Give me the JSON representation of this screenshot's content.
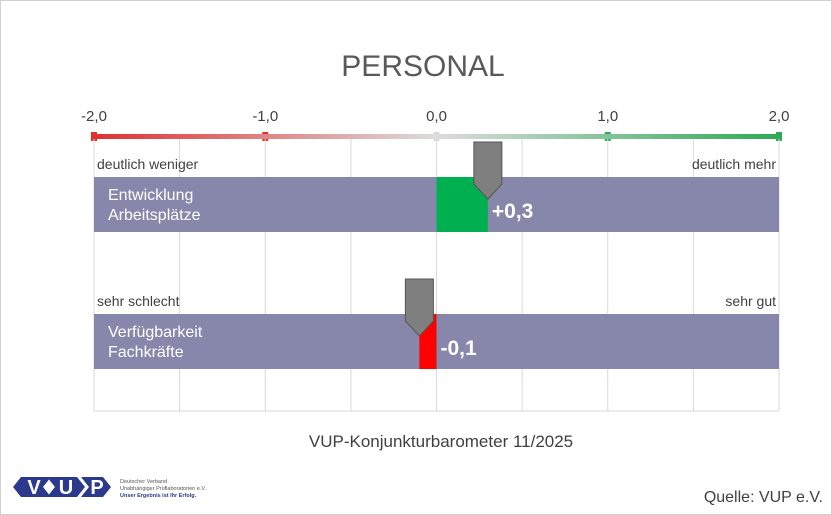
{
  "chart_data": {
    "type": "bar",
    "title": "PERSONAL",
    "xlim": [
      -2,
      2
    ],
    "ticks": [
      -2,
      -1,
      0,
      1,
      2
    ],
    "tick_labels": [
      "-2,0",
      "-1,0",
      "0,0",
      "1,0",
      "2,0"
    ],
    "grid": true,
    "rows": [
      {
        "left_label": "deutlich weniger",
        "right_label": "deutlich mehr",
        "category_lines": [
          "Entwicklung",
          "Arbeitsplätze"
        ],
        "value": 0.3,
        "value_label": "+0,3",
        "color": "#00b050"
      },
      {
        "left_label": "sehr schlecht",
        "right_label": "sehr gut",
        "category_lines": [
          "Verfügbarkeit",
          "Fachkräfte"
        ],
        "value": -0.1,
        "value_label": "-0,1",
        "color": "#ff0000"
      }
    ]
  },
  "footer": {
    "subtitle": "VUP-Konjunkturbarometer 11/2025",
    "source": "Quelle: VUP e.V."
  },
  "logo": {
    "letters": [
      "V",
      "U",
      "P"
    ],
    "line1": "Deutscher Verband",
    "line2": "Unabhängiger Prüflaboratorien e.V.",
    "line3": "Unser Ergebnis ist Ihr Erfolg."
  },
  "colors": {
    "bar_background": "#8687ab",
    "negative_end": "#e03030",
    "neutral": "#d9d9d9",
    "positive_end": "#2eaa55",
    "marker": "#7f7f7f",
    "logo_blue": "#2b3a8c"
  }
}
